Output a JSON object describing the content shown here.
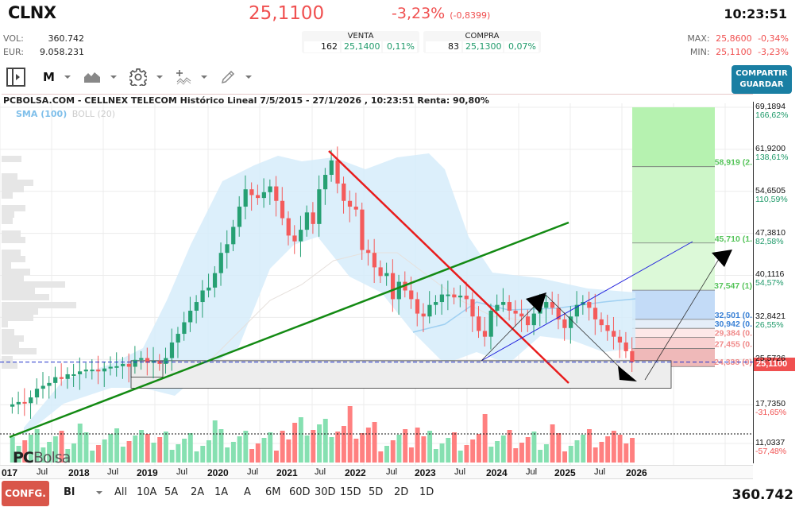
{
  "header": {
    "ticker": "CLNX",
    "price": "25,1100",
    "change_pct": "-3,23%",
    "change_abs": "(-0,8399)",
    "time": "10:23:51",
    "vol_label": "VOL:",
    "vol_value": "360.742",
    "eur_label": "EUR:",
    "eur_value": "9.058.231",
    "venta": {
      "title": "VENTA",
      "qty": "162",
      "price": "25,1400",
      "pct": "0,11%"
    },
    "compra": {
      "title": "COMPRA",
      "qty": "83",
      "price": "25,1300",
      "pct": "0,07%"
    },
    "max_label": "MAX:",
    "max_value": "25,8600",
    "max_pct": "-0,34%",
    "min_label": "MIN:",
    "min_value": "25,1100",
    "min_pct": "-3,23%"
  },
  "toolbar": {
    "panel_toggle_icon": "panel-toggle-icon",
    "period": "M",
    "chart_type_icon": "area-chart-icon",
    "settings_icon": "gear-icon",
    "indicators_icon": "indicator-add-icon",
    "draw_icon": "pencil-icon",
    "share_line1": "COMPARTIR",
    "share_line2": "GUARDAR"
  },
  "chart": {
    "title": "PCBOLSA.COM - CELLNEX TELECOM Histórico Lineal 7/5/2015 - 27/1/2026 , 10:23:51 Renta: 90,80%",
    "legend_sma": "SMA (100)",
    "legend_boll": "BOLL (20)",
    "current_price_tag": "25,1100",
    "logo_pc": "PC",
    "logo_bolsa": "Bolsa",
    "colors": {
      "up": "#26a073",
      "down": "#f45b5b",
      "vol_up": "#86e0b1",
      "vol_down": "#ff8080",
      "boll": "#d6ecfa",
      "sma": "#9fd0f2",
      "trend_red": "#e81c1c",
      "trend_green": "#138a13",
      "trend_blue": "#2222dd"
    }
  },
  "chart_data": {
    "type": "candlestick",
    "title": "PCBOLSA.COM - CELLNEX TELECOM Histórico Lineal 7/5/2015 - 27/1/2026",
    "interval": "monthly",
    "y_ticks": [
      {
        "value": "69,1894",
        "pct": "166,62%"
      },
      {
        "value": "61,9200",
        "pct": "138,61%"
      },
      {
        "value": "54,6505",
        "pct": "110,59%"
      },
      {
        "value": "47,3810",
        "pct": "82,58%"
      },
      {
        "value": "40,1116",
        "pct": "54,57%"
      },
      {
        "value": "32,8421",
        "pct": "26,55%"
      },
      {
        "value": "25,5726",
        "pct": ""
      },
      {
        "value": "17,7350",
        "pct": "-31,65%"
      },
      {
        "value": "11,0337",
        "pct": "-57,48%"
      }
    ],
    "x_ticks": [
      "017",
      "Jul",
      "2018",
      "Jul",
      "2019",
      "Jul",
      "2020",
      "Jul",
      "2021",
      "Jul",
      "2022",
      "Jul",
      "2023",
      "Jul",
      "2024",
      "Jul",
      "2025",
      "Jul",
      "2026"
    ],
    "fib_levels": [
      {
        "label": "58,919 (2.",
        "value": 58.919
      },
      {
        "label": "45,710 (1.",
        "value": 45.71
      },
      {
        "label": "37,547 (1)",
        "value": 37.547
      },
      {
        "label": "32,501 (0.",
        "value": 32.501
      },
      {
        "label": "30,942 (0.",
        "value": 30.942
      },
      {
        "label": "29,384 (0.",
        "value": 29.384
      },
      {
        "label": "27,455 (0.",
        "value": 27.455
      },
      {
        "label": "24,338 (0)",
        "value": 24.338
      }
    ],
    "last_price": 25.11,
    "series_close_approx": [
      17.8,
      18.2,
      18.0,
      19.0,
      20.5,
      21.0,
      21.5,
      22.5,
      22.2,
      23.0,
      23.0,
      23.5,
      23.8,
      23.8,
      23.5,
      24.0,
      24.3,
      24.4,
      24.8,
      24.3,
      25.5,
      25.8,
      25.0,
      25.3,
      24.8,
      25.8,
      28.5,
      30.0,
      32.0,
      34.0,
      35.5,
      37.5,
      38.0,
      40.5,
      44.0,
      45.5,
      48.5,
      52.0,
      55.0,
      54.0,
      53.5,
      54.5,
      55.5,
      53.0,
      50.0,
      47.0,
      46.0,
      48.0,
      51.0,
      49.0,
      55.0,
      57.5,
      60.0,
      56.0,
      53.0,
      52.0,
      51.5,
      44.5,
      44.0,
      41.5,
      40.0,
      40.5,
      36.0,
      39.0,
      37.5,
      36.0,
      33.5,
      33.0,
      35.0,
      35.5,
      36.8,
      36.8,
      36.3,
      36.6,
      36.0,
      33.0,
      30.5,
      29.5,
      34.0,
      35.0,
      35.5,
      34.0,
      33.5,
      33.0,
      31.5,
      33.5,
      34.5,
      35.5,
      34.5,
      32.5,
      31.0,
      33.0,
      35.0,
      35.5,
      34.5,
      32.5,
      31.5,
      30.5,
      29.5,
      28.5,
      27.0,
      25.11
    ],
    "volume_relative": "bars green/red per month, peak ~2021/2025"
  },
  "footer": {
    "config_label": "CONFG.",
    "mode": "Bl",
    "ranges": [
      "All",
      "10A",
      "5A",
      "2A",
      "1A",
      "A",
      "6M",
      "60D",
      "30D",
      "15D",
      "5D",
      "2D",
      "1D"
    ],
    "volume_total": "360.742"
  }
}
